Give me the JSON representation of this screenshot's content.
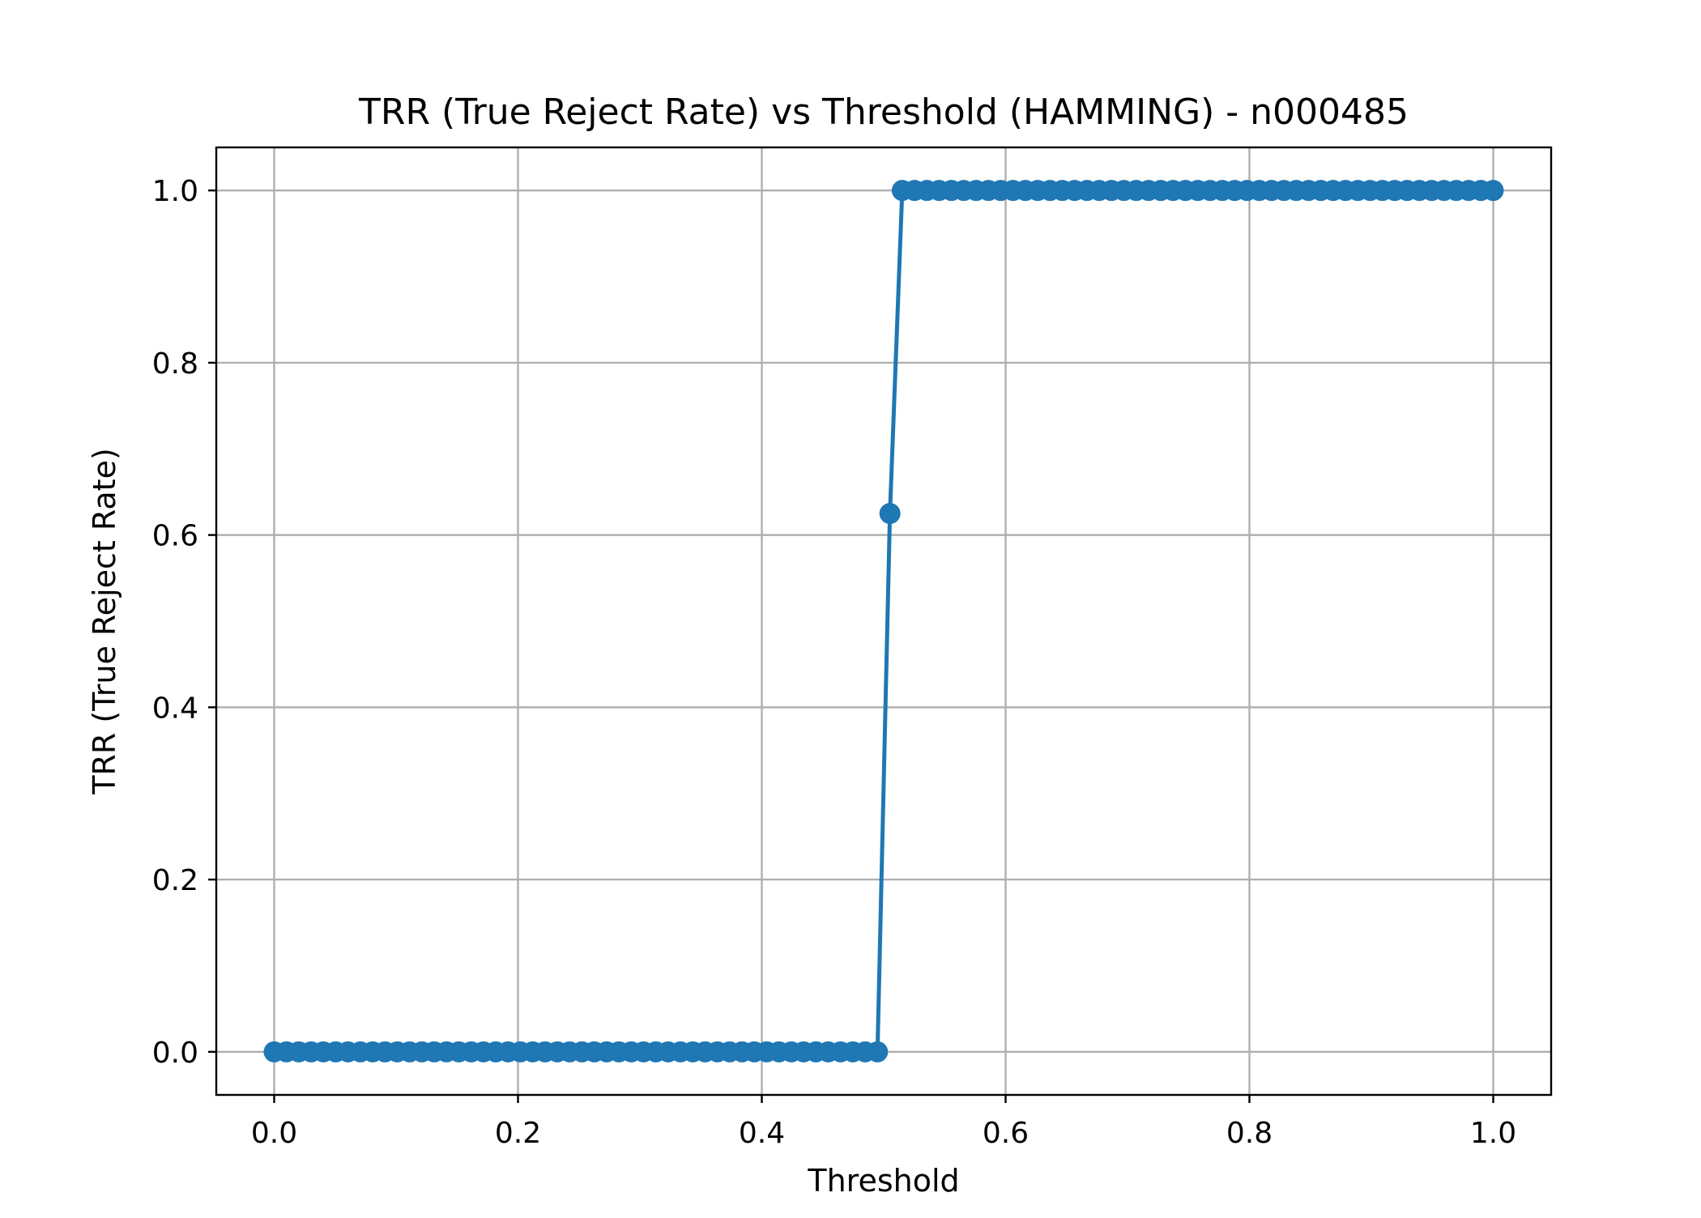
{
  "chart_data": {
    "type": "line",
    "title": "TRR (True Reject Rate) vs Threshold (HAMMING) - n000485",
    "xlabel": "Threshold",
    "ylabel": "TRR (True Reject Rate)",
    "xlim": [
      -0.0475,
      1.0475
    ],
    "ylim": [
      -0.05,
      1.05
    ],
    "xticks": [
      0.0,
      0.2,
      0.4,
      0.6,
      0.8,
      1.0
    ],
    "yticks": [
      0.0,
      0.2,
      0.4,
      0.6,
      0.8,
      1.0
    ],
    "xtick_labels": [
      "0.0",
      "0.2",
      "0.4",
      "0.6",
      "0.8",
      "1.0"
    ],
    "ytick_labels": [
      "0.0",
      "0.2",
      "0.4",
      "0.6",
      "0.8",
      "1.0"
    ],
    "grid": true,
    "legend": null,
    "marker": "circle",
    "series": [
      {
        "color": "#1f77b4",
        "x": [
          0.0,
          0.0101,
          0.0202,
          0.0303,
          0.0404,
          0.0505,
          0.0606,
          0.0707,
          0.0808,
          0.0909,
          0.101,
          0.1111,
          0.1212,
          0.1313,
          0.1414,
          0.1515,
          0.1616,
          0.1717,
          0.1818,
          0.1919,
          0.202,
          0.2121,
          0.2222,
          0.2323,
          0.2424,
          0.2525,
          0.2626,
          0.2727,
          0.2828,
          0.2929,
          0.303,
          0.3131,
          0.3232,
          0.3333,
          0.3434,
          0.3535,
          0.3636,
          0.3737,
          0.3838,
          0.3939,
          0.404,
          0.4141,
          0.4242,
          0.4343,
          0.4444,
          0.4545,
          0.4646,
          0.4747,
          0.4848,
          0.4949,
          0.5051,
          0.5152,
          0.5253,
          0.5354,
          0.5455,
          0.5556,
          0.5657,
          0.5758,
          0.5859,
          0.596,
          0.6061,
          0.6162,
          0.6263,
          0.6364,
          0.6465,
          0.6566,
          0.6667,
          0.6768,
          0.6869,
          0.697,
          0.7071,
          0.7172,
          0.7273,
          0.7374,
          0.7475,
          0.7576,
          0.7677,
          0.7778,
          0.7879,
          0.798,
          0.8081,
          0.8182,
          0.8283,
          0.8384,
          0.8485,
          0.8586,
          0.8687,
          0.8788,
          0.8889,
          0.899,
          0.9091,
          0.9192,
          0.9293,
          0.9394,
          0.9495,
          0.9596,
          0.9697,
          0.9798,
          0.9899,
          1.0
        ],
        "y": [
          0,
          0,
          0,
          0,
          0,
          0,
          0,
          0,
          0,
          0,
          0,
          0,
          0,
          0,
          0,
          0,
          0,
          0,
          0,
          0,
          0,
          0,
          0,
          0,
          0,
          0,
          0,
          0,
          0,
          0,
          0,
          0,
          0,
          0,
          0,
          0,
          0,
          0,
          0,
          0,
          0,
          0,
          0,
          0,
          0,
          0,
          0,
          0,
          0,
          0,
          0.625,
          1,
          1,
          1,
          1,
          1,
          1,
          1,
          1,
          1,
          1,
          1,
          1,
          1,
          1,
          1,
          1,
          1,
          1,
          1,
          1,
          1,
          1,
          1,
          1,
          1,
          1,
          1,
          1,
          1,
          1,
          1,
          1,
          1,
          1,
          1,
          1,
          1,
          1,
          1,
          1,
          1,
          1,
          1,
          1,
          1,
          1,
          1,
          1,
          1
        ]
      }
    ]
  }
}
